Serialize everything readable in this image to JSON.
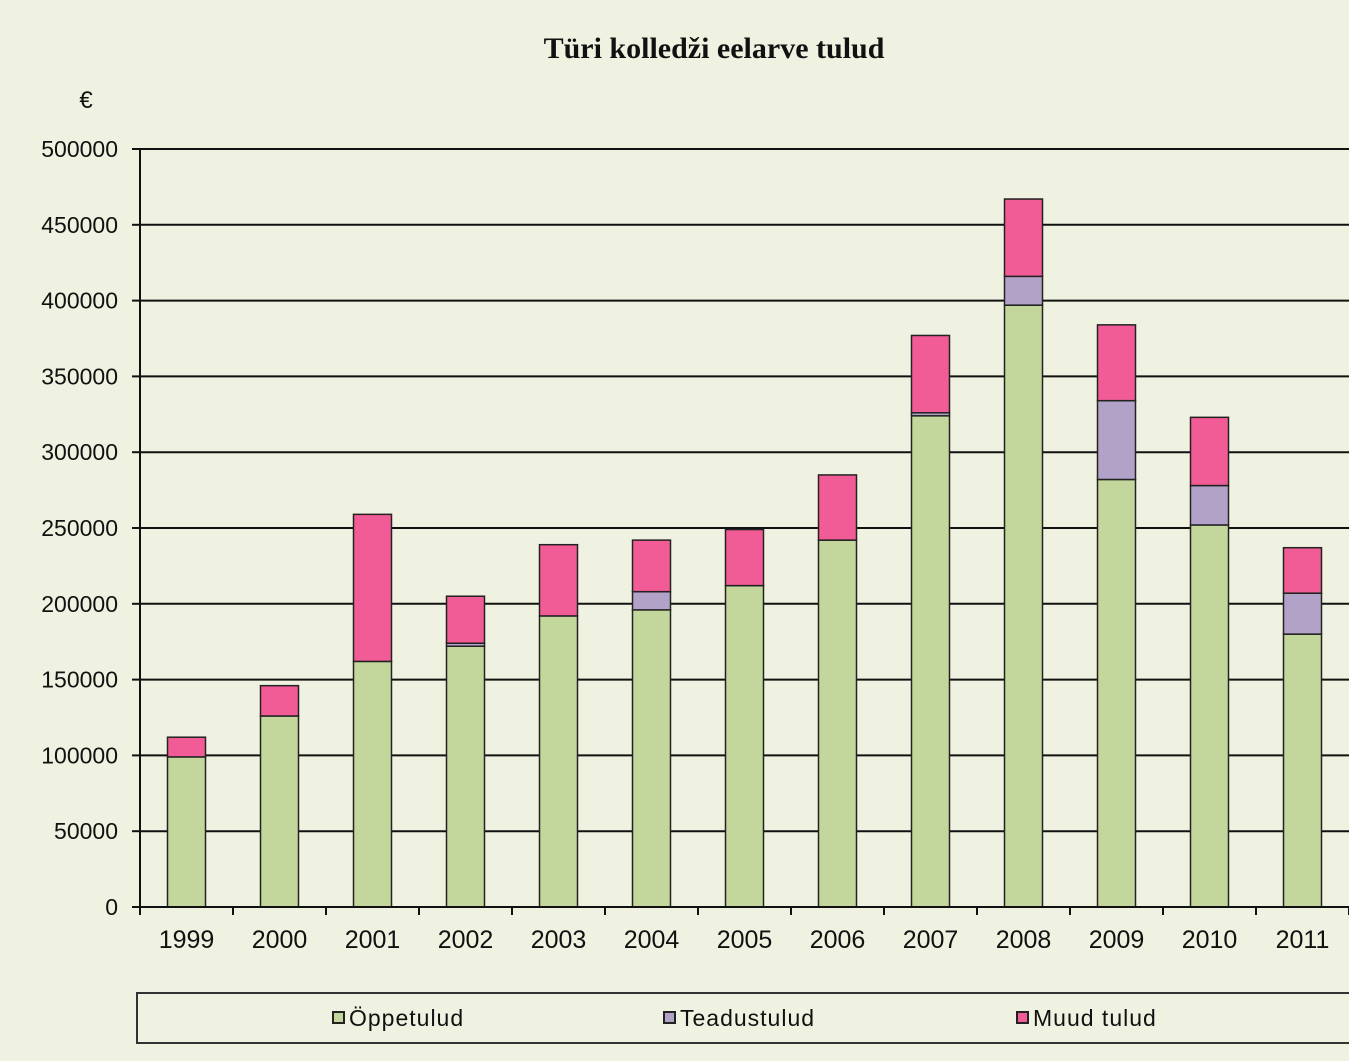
{
  "chart_data": {
    "type": "bar",
    "stacked": true,
    "title": "Türi kolledži eelarve tulud",
    "ylabel": "€",
    "xlabel": "",
    "ylim": [
      0,
      500000
    ],
    "yticks": [
      0,
      50000,
      100000,
      150000,
      200000,
      250000,
      300000,
      350000,
      400000,
      450000,
      500000
    ],
    "ytick_labels": [
      "0",
      "50000",
      "100000",
      "150000",
      "200000",
      "250000",
      "300000",
      "350000",
      "400000",
      "450000",
      "500000"
    ],
    "grid": true,
    "legend_position": "bottom",
    "categories": [
      "1999",
      "2000",
      "2001",
      "2002",
      "2003",
      "2004",
      "2005",
      "2006",
      "2007",
      "2008",
      "2009",
      "2010",
      "2011"
    ],
    "series": [
      {
        "name": "Öppetulud",
        "color": "#c3d69b",
        "values": [
          99000,
          126000,
          162000,
          172000,
          192000,
          196000,
          212000,
          242000,
          324000,
          397000,
          282000,
          252000,
          180000
        ]
      },
      {
        "name": "Teadustulud",
        "color": "#b3a2c7",
        "values": [
          0,
          0,
          0,
          2000,
          0,
          12000,
          0,
          0,
          2000,
          19000,
          52000,
          26000,
          27000
        ]
      },
      {
        "name": "Muud tulud",
        "color": "#f25c96",
        "values": [
          13000,
          20000,
          97000,
          31000,
          47000,
          34000,
          37000,
          43000,
          51000,
          51000,
          50000,
          45000,
          30000
        ]
      }
    ]
  }
}
